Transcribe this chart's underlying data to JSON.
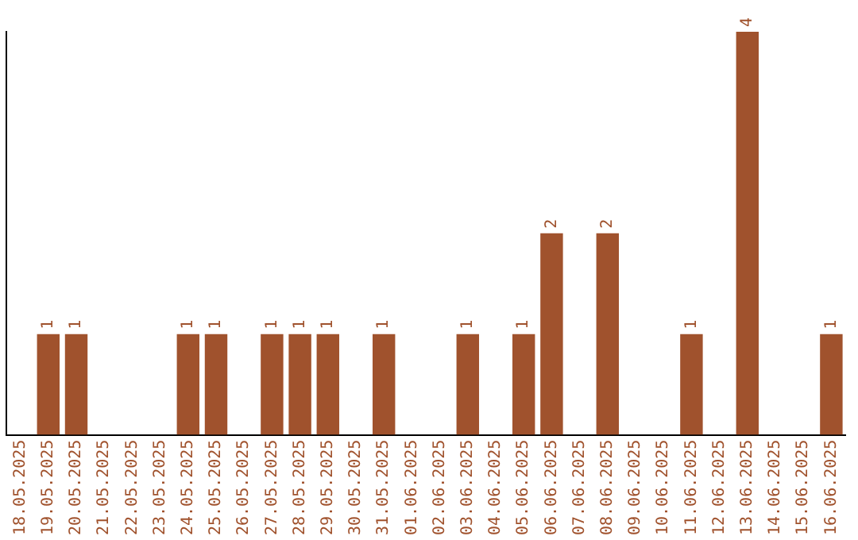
{
  "chart_data": {
    "type": "bar",
    "categories": [
      "18.05.2025",
      "19.05.2025",
      "20.05.2025",
      "21.05.2025",
      "22.05.2025",
      "23.05.2025",
      "24.05.2025",
      "25.05.2025",
      "26.05.2025",
      "27.05.2025",
      "28.05.2025",
      "29.05.2025",
      "30.05.2025",
      "31.05.2025",
      "01.06.2025",
      "02.06.2025",
      "03.06.2025",
      "04.06.2025",
      "05.06.2025",
      "06.06.2025",
      "07.06.2025",
      "08.06.2025",
      "09.06.2025",
      "10.06.2025",
      "11.06.2025",
      "12.06.2025",
      "13.06.2025",
      "14.06.2025",
      "15.06.2025",
      "16.06.2025"
    ],
    "values": [
      0,
      1,
      1,
      0,
      0,
      0,
      1,
      1,
      0,
      1,
      1,
      1,
      0,
      1,
      0,
      0,
      1,
      0,
      1,
      2,
      0,
      2,
      0,
      0,
      1,
      0,
      4,
      0,
      0,
      1
    ],
    "value_labels": [
      null,
      "1",
      "1",
      null,
      null,
      null,
      "1",
      "1",
      null,
      "1",
      "1",
      "1",
      null,
      "1",
      null,
      null,
      "1",
      null,
      "1",
      "2",
      null,
      "2",
      null,
      null,
      "1",
      null,
      "4",
      null,
      null,
      "1"
    ],
    "color": "#a0522d",
    "grid": false,
    "legend": false,
    "tick_labels": "x"
  }
}
